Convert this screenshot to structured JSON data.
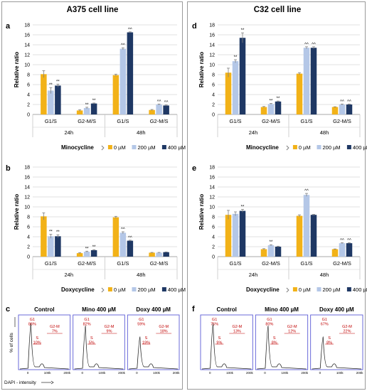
{
  "figure": {
    "left_title": "A375 cell line",
    "right_title": "C32 cell line",
    "ylabel": "Relative ratio",
    "group_time_labels": [
      "24h",
      "48h"
    ],
    "cat_labels": [
      "G1/S",
      "G2-M/S",
      "G1/S",
      "G2-M/S"
    ],
    "legend_unit_labels": [
      "0 µM",
      "200 µM",
      "400 µM"
    ],
    "series_colors": [
      "#f2b218",
      "#b4c7e7",
      "#1f3864"
    ],
    "flow_ylabel": "% of cells",
    "flow_xlabel": "DAPI - intensity",
    "flow_titles": [
      "Control",
      "Mino 400 µM",
      "Doxy 400 µM"
    ],
    "flow_ticks": [
      "0",
      "100k",
      "200k"
    ]
  },
  "chart_data": [
    {
      "type": "bar",
      "panel": "a",
      "drug": "Minocycline",
      "ylim": [
        0,
        18
      ],
      "yticks": [
        0,
        2,
        4,
        6,
        8,
        10,
        12,
        14,
        16,
        18
      ],
      "grid": true,
      "categories": [
        "G1/S 24h",
        "G2-M/S 24h",
        "G1/S 48h",
        "G2-M/S 48h"
      ],
      "series": [
        {
          "name": "0 µM",
          "values": [
            8.1,
            0.8,
            7.9,
            0.9
          ],
          "errors": [
            0.7,
            0.15,
            0.2,
            0.1
          ],
          "marks": [
            "",
            "",
            "",
            ""
          ]
        },
        {
          "name": "200 µM",
          "values": [
            4.8,
            1.3,
            13.2,
            2.0
          ],
          "errors": [
            0.6,
            0.15,
            0.2,
            0.1
          ],
          "marks": [
            "**",
            "**",
            "^^",
            "^^"
          ]
        },
        {
          "name": "400 µM",
          "values": [
            5.8,
            2.2,
            16.5,
            1.8
          ],
          "errors": [
            0.3,
            0.1,
            0.1,
            0.1
          ],
          "marks": [
            "**",
            "**",
            "^^",
            "^^"
          ]
        }
      ]
    },
    {
      "type": "bar",
      "panel": "b",
      "drug": "Doxycycline",
      "ylim": [
        0,
        18
      ],
      "yticks": [
        0,
        2,
        4,
        6,
        8,
        10,
        12,
        14,
        16,
        18
      ],
      "grid": true,
      "categories": [
        "G1/S 24h",
        "G2-M/S 24h",
        "G1/S 48h",
        "G2-M/S 48h"
      ],
      "series": [
        {
          "name": "0 µM",
          "values": [
            8.1,
            0.7,
            7.9,
            0.8
          ],
          "errors": [
            0.7,
            0.1,
            0.2,
            0.05
          ],
          "marks": [
            "",
            "",
            "",
            ""
          ]
        },
        {
          "name": "200 µM",
          "values": [
            4.1,
            1.0,
            4.8,
            0.8
          ],
          "errors": [
            0.4,
            0.1,
            0.2,
            0.05
          ],
          "marks": [
            "**",
            "**",
            "^^",
            ""
          ]
        },
        {
          "name": "400 µM",
          "values": [
            4.1,
            1.3,
            3.2,
            0.9
          ],
          "errors": [
            0.3,
            0.1,
            0.1,
            0.05
          ],
          "marks": [
            "**",
            "**",
            "^^",
            ""
          ]
        }
      ]
    },
    {
      "type": "bar",
      "panel": "d",
      "drug": "Minocycline",
      "ylim": [
        0,
        18
      ],
      "yticks": [
        0,
        2,
        4,
        6,
        8,
        10,
        12,
        14,
        16,
        18
      ],
      "grid": true,
      "categories": [
        "G1/S 24h",
        "G2-M/S 24h",
        "G1/S 48h",
        "G2-M/S 48h"
      ],
      "series": [
        {
          "name": "0 µM",
          "values": [
            8.4,
            1.5,
            8.2,
            1.5
          ],
          "errors": [
            0.9,
            0.1,
            0.2,
            0.05
          ],
          "marks": [
            "",
            "",
            "",
            ""
          ]
        },
        {
          "name": "200 µM",
          "values": [
            10.7,
            2.1,
            13.4,
            2.0
          ],
          "errors": [
            0.3,
            0.1,
            0.2,
            0.1
          ],
          "marks": [
            "**",
            "**",
            "^^",
            "^^"
          ]
        },
        {
          "name": "400 µM",
          "values": [
            15.4,
            2.6,
            13.4,
            2.0
          ],
          "errors": [
            1.0,
            0.1,
            0.2,
            0.1
          ],
          "marks": [
            "**",
            "**",
            "^^",
            "^^"
          ]
        }
      ]
    },
    {
      "type": "bar",
      "panel": "e",
      "drug": "Doxycycline",
      "ylim": [
        0,
        18
      ],
      "yticks": [
        0,
        2,
        4,
        6,
        8,
        10,
        12,
        14,
        16,
        18
      ],
      "grid": true,
      "categories": [
        "G1/S 24h",
        "G2-M/S 24h",
        "G1/S 48h",
        "G2-M/S 48h"
      ],
      "series": [
        {
          "name": "0 µM",
          "values": [
            8.4,
            1.5,
            8.2,
            1.5
          ],
          "errors": [
            0.9,
            0.1,
            0.2,
            0.05
          ],
          "marks": [
            "",
            "",
            "",
            ""
          ]
        },
        {
          "name": "200 µM",
          "values": [
            8.6,
            2.3,
            12.4,
            2.7
          ],
          "errors": [
            0.4,
            0.1,
            0.3,
            0.1
          ],
          "marks": [
            "",
            "**",
            "^^",
            "^^"
          ]
        },
        {
          "name": "400 µM",
          "values": [
            9.2,
            2.0,
            8.4,
            2.7
          ],
          "errors": [
            0.3,
            0.1,
            0.1,
            0.1
          ],
          "marks": [
            "**",
            "",
            "",
            "^^"
          ]
        }
      ]
    }
  ],
  "flow_panels": [
    {
      "panel": "c",
      "histograms": [
        {
          "g1": "G1\n86%",
          "s": "S\n10%",
          "g2m": "G2-M\n7%"
        },
        {
          "g1": "G1\n82%",
          "s": "S\n5%",
          "g2m": "G2-M\n9%"
        },
        {
          "g1": "G1\n59%",
          "s": "S\n19%",
          "g2m": "G2-M\n18%"
        }
      ]
    },
    {
      "panel": "f",
      "histograms": [
        {
          "g1": "G1\n75%",
          "s": "S\n9%",
          "g2m": "G2-M\n13%"
        },
        {
          "g1": "G1\n80%",
          "s": "S\n8%",
          "g2m": "G2-M\n12%"
        },
        {
          "g1": "G1\n67%",
          "s": "S\n8%",
          "g2m": "G2-M\n22%"
        }
      ]
    }
  ]
}
